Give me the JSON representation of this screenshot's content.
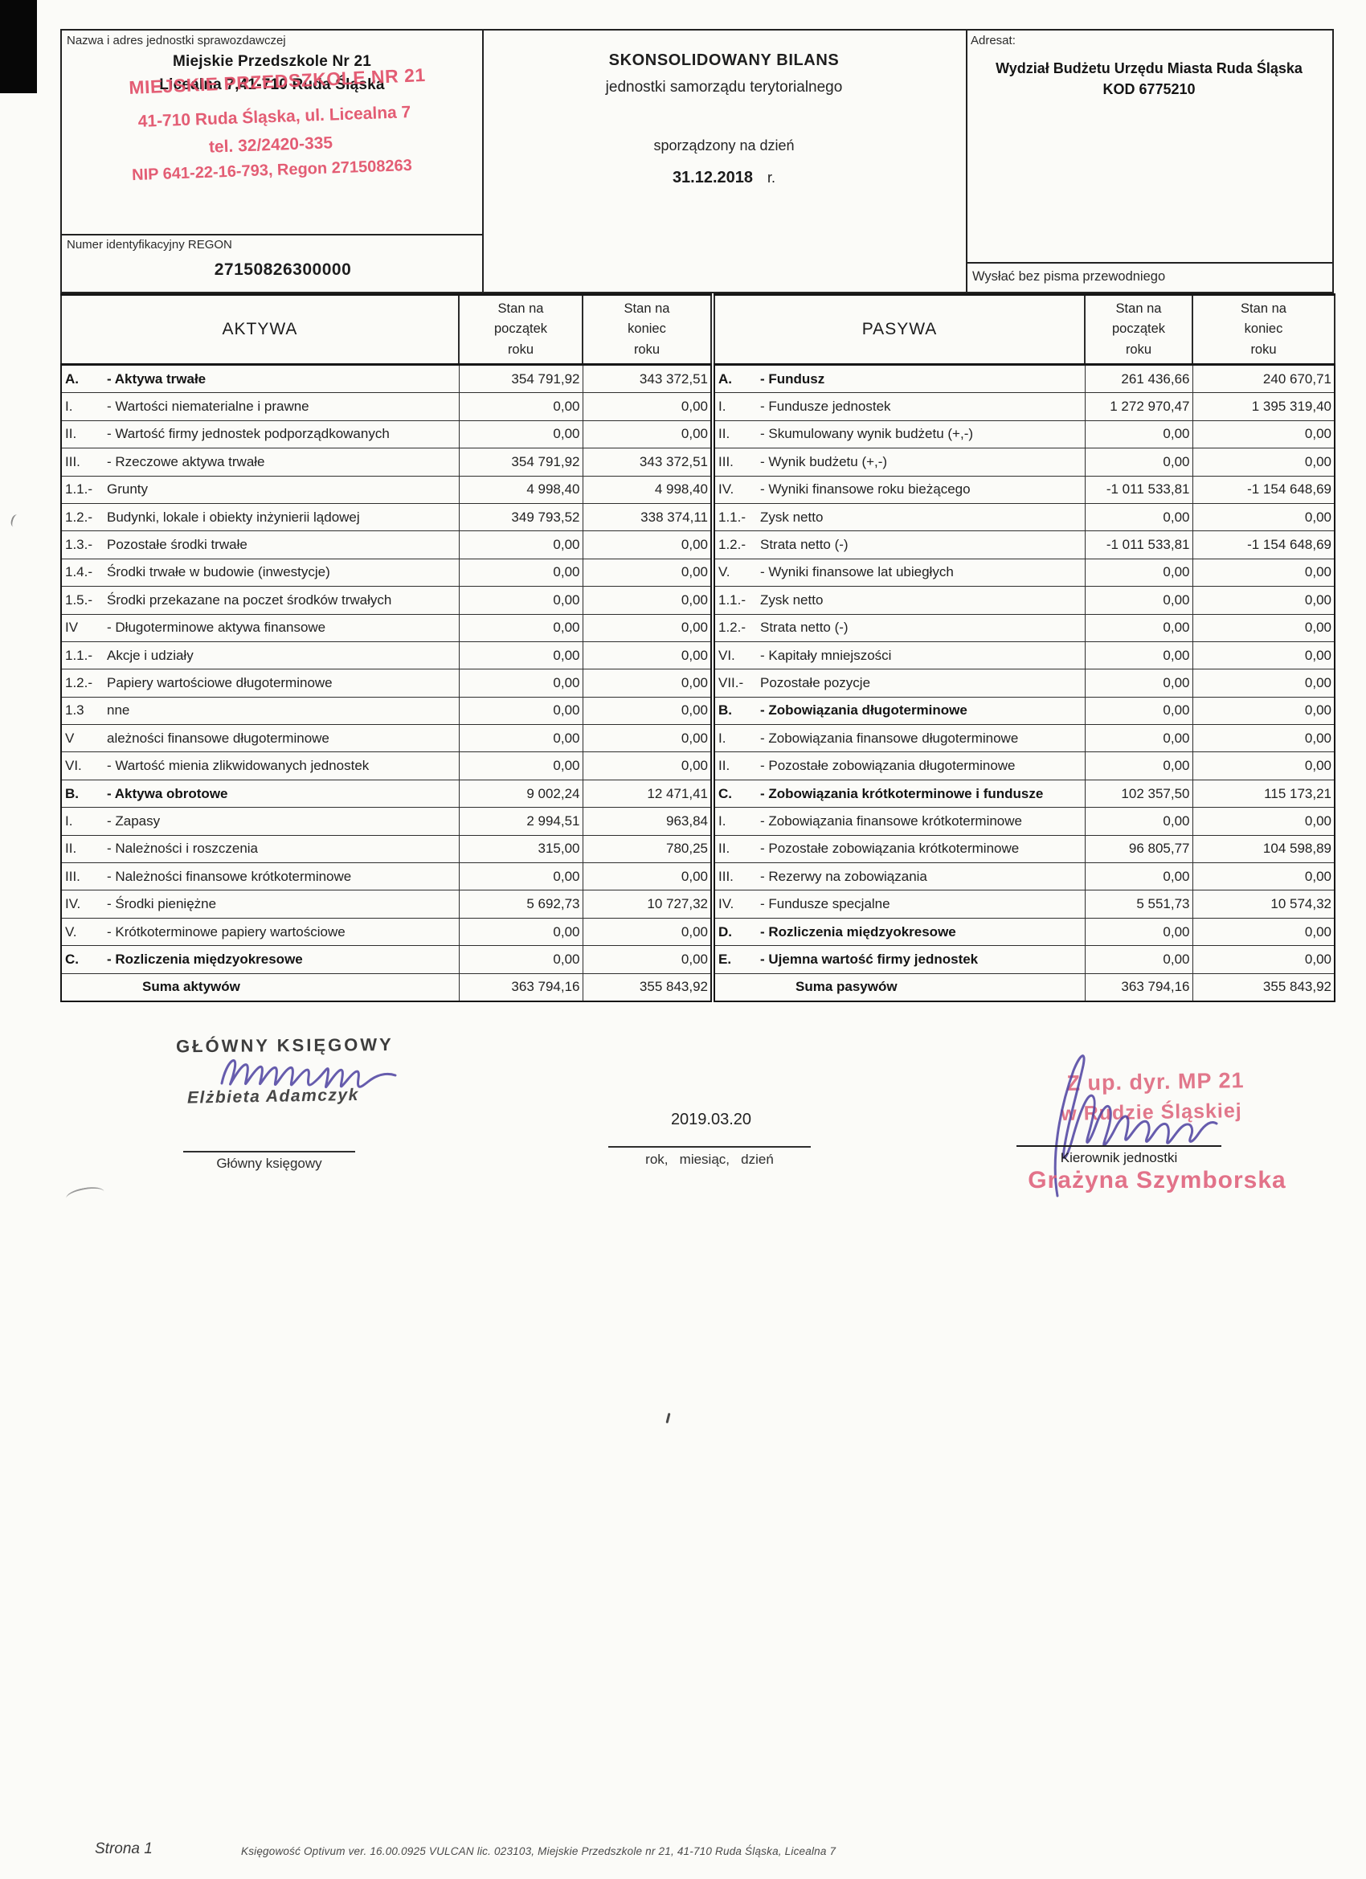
{
  "header": {
    "name_box": {
      "label": "Nazwa i adres jednostki sprawozdawczej",
      "typed_line1": "Miejskie Przedszkole Nr 21",
      "typed_line2": "Licealna 7,41-710 Ruda Śląska",
      "stamp": {
        "line1": "MIEJSKIE PRZEDSZKOLE NR 21",
        "line2": "41-710 Ruda Śląska, ul. Licealna 7",
        "line3": "tel. 32/2420-335",
        "line4": "NIP 641-22-16-793, Regon 271508263",
        "color": "#e25069"
      }
    },
    "title_box": {
      "title": "SKONSOLIDOWANY BILANS",
      "subtitle": "jednostki samorządu terytorialnego",
      "prepared_label": "sporządzony na dzień",
      "date": "31.12.2018",
      "date_suffix": "r."
    },
    "addressee_box": {
      "label": "Adresat:",
      "value": "Wydział Budżetu Urzędu Miasta Ruda Śląska KOD 6775210"
    },
    "regon_box": {
      "label": "Numer identyfikacyjny REGON",
      "value": "27150826300000"
    },
    "send_note": "Wysłać bez pisma przewodniego"
  },
  "table": {
    "aktywa_header": "AKTYWA",
    "pasywa_header": "PASYWA",
    "stan_header": "Stan na\npoczątek\nroku",
    "stan_header_end": "Stan na\nkoniec\nroku",
    "rows": [
      {
        "a": {
          "c": "A.",
          "t": "- Aktywa trwałe",
          "b": 1
        },
        "a1": "354 791,92",
        "a2": "343 372,51",
        "p": {
          "c": "A.",
          "t": "- Fundusz",
          "b": 1
        },
        "p1": "261 436,66",
        "p2": "240 670,71"
      },
      {
        "a": {
          "c": "I.",
          "t": "- Wartości niematerialne i prawne"
        },
        "a1": "0,00",
        "a2": "0,00",
        "p": {
          "c": "I.",
          "t": "- Fundusze jednostek"
        },
        "p1": "1 272 970,47",
        "p2": "1 395 319,40"
      },
      {
        "a": {
          "c": "II.",
          "t": "- Wartość firmy jednostek podporządkowanych"
        },
        "a1": "0,00",
        "a2": "0,00",
        "p": {
          "c": "II.",
          "t": "- Skumulowany wynik budżetu (+,-)"
        },
        "p1": "0,00",
        "p2": "0,00"
      },
      {
        "a": {
          "c": "III.",
          "t": "- Rzeczowe aktywa trwałe"
        },
        "a1": "354 791,92",
        "a2": "343 372,51",
        "p": {
          "c": "III.",
          "t": "- Wynik budżetu (+,-)"
        },
        "p1": "0,00",
        "p2": "0,00"
      },
      {
        "a": {
          "c": "1.1.-",
          "t": "Grunty"
        },
        "a1": "4 998,40",
        "a2": "4 998,40",
        "p": {
          "c": "IV.",
          "t": "- Wyniki finansowe roku bieżącego"
        },
        "p1": "-1 011 533,81",
        "p2": "-1 154 648,69"
      },
      {
        "a": {
          "c": "1.2.-",
          "t": "Budynki, lokale i obiekty inżynierii lądowej"
        },
        "a1": "349 793,52",
        "a2": "338 374,11",
        "p": {
          "c": "1.1.-",
          "t": "Zysk netto"
        },
        "p1": "0,00",
        "p2": "0,00"
      },
      {
        "a": {
          "c": "1.3.-",
          "t": "Pozostałe środki trwałe"
        },
        "a1": "0,00",
        "a2": "0,00",
        "p": {
          "c": "1.2.-",
          "t": "Strata netto (-)"
        },
        "p1": "-1 011 533,81",
        "p2": "-1 154 648,69"
      },
      {
        "a": {
          "c": "1.4.-",
          "t": "Środki trwałe w budowie (inwestycje)"
        },
        "a1": "0,00",
        "a2": "0,00",
        "p": {
          "c": "V.",
          "t": "- Wyniki finansowe lat ubiegłych"
        },
        "p1": "0,00",
        "p2": "0,00"
      },
      {
        "a": {
          "c": "1.5.-",
          "t": "Środki przekazane na poczet środków trwałych"
        },
        "a1": "0,00",
        "a2": "0,00",
        "p": {
          "c": "1.1.-",
          "t": "Zysk netto"
        },
        "p1": "0,00",
        "p2": "0,00"
      },
      {
        "a": {
          "c": "IV",
          "t": "- Długoterminowe aktywa finansowe"
        },
        "a1": "0,00",
        "a2": "0,00",
        "p": {
          "c": "1.2.-",
          "t": "Strata netto (-)"
        },
        "p1": "0,00",
        "p2": "0,00"
      },
      {
        "a": {
          "c": "1.1.-",
          "t": "Akcje i udziały"
        },
        "a1": "0,00",
        "a2": "0,00",
        "p": {
          "c": "VI.",
          "t": "- Kapitały mniejszości"
        },
        "p1": "0,00",
        "p2": "0,00"
      },
      {
        "a": {
          "c": "1.2.-",
          "t": "Papiery wartościowe długoterminowe"
        },
        "a1": "0,00",
        "a2": "0,00",
        "p": {
          "c": "VII.-",
          "t": "Pozostałe pozycje"
        },
        "p1": "0,00",
        "p2": "0,00"
      },
      {
        "a": {
          "c": "1.3",
          "t": "nne"
        },
        "a1": "0,00",
        "a2": "0,00",
        "p": {
          "c": "B.",
          "t": "- Zobowiązania długoterminowe",
          "b": 1
        },
        "p1": "0,00",
        "p2": "0,00"
      },
      {
        "a": {
          "c": "V",
          "t": "ależności finansowe długoterminowe"
        },
        "a1": "0,00",
        "a2": "0,00",
        "p": {
          "c": "I.",
          "t": "- Zobowiązania finansowe długoterminowe"
        },
        "p1": "0,00",
        "p2": "0,00"
      },
      {
        "a": {
          "c": "VI.",
          "t": "- Wartość mienia zlikwidowanych jednostek"
        },
        "a1": "0,00",
        "a2": "0,00",
        "p": {
          "c": "II.",
          "t": "- Pozostałe zobowiązania długoterminowe"
        },
        "p1": "0,00",
        "p2": "0,00"
      },
      {
        "a": {
          "c": "B.",
          "t": "- Aktywa obrotowe",
          "b": 1
        },
        "a1": "9 002,24",
        "a2": "12 471,41",
        "p": {
          "c": "C.",
          "t": "- Zobowiązania krótkoterminowe i fundusze",
          "b": 1
        },
        "p1": "102 357,50",
        "p2": "115 173,21"
      },
      {
        "a": {
          "c": "I.",
          "t": "- Zapasy"
        },
        "a1": "2 994,51",
        "a2": "963,84",
        "p": {
          "c": "I.",
          "t": "- Zobowiązania finansowe krótkoterminowe"
        },
        "p1": "0,00",
        "p2": "0,00"
      },
      {
        "a": {
          "c": "II.",
          "t": "- Należności i roszczenia"
        },
        "a1": "315,00",
        "a2": "780,25",
        "p": {
          "c": "II.",
          "t": "- Pozostałe zobowiązania krótkoterminowe"
        },
        "p1": "96 805,77",
        "p2": "104 598,89"
      },
      {
        "a": {
          "c": "III.",
          "t": "- Należności finansowe krótkoterminowe"
        },
        "a1": "0,00",
        "a2": "0,00",
        "p": {
          "c": "III.",
          "t": "- Rezerwy na zobowiązania"
        },
        "p1": "0,00",
        "p2": "0,00"
      },
      {
        "a": {
          "c": "IV.",
          "t": "- Środki pieniężne"
        },
        "a1": "5 692,73",
        "a2": "10 727,32",
        "p": {
          "c": "IV.",
          "t": "- Fundusze specjalne"
        },
        "p1": "5 551,73",
        "p2": "10 574,32"
      },
      {
        "a": {
          "c": "V.",
          "t": "- Krótkoterminowe papiery wartościowe"
        },
        "a1": "0,00",
        "a2": "0,00",
        "p": {
          "c": "D.",
          "t": "- Rozliczenia międzyokresowe",
          "b": 1
        },
        "p1": "0,00",
        "p2": "0,00"
      },
      {
        "a": {
          "c": "C.",
          "t": "- Rozliczenia międzyokresowe",
          "b": 1
        },
        "a1": "0,00",
        "a2": "0,00",
        "p": {
          "c": "E.",
          "t": "- Ujemna wartość firmy jednostek",
          "b": 1
        },
        "p1": "0,00",
        "p2": "0,00"
      },
      {
        "a": {
          "c": "",
          "t": "Suma aktywów",
          "b": 1,
          "s": 1
        },
        "a1": "363 794,16",
        "a2": "355 843,92",
        "p": {
          "c": "",
          "t": "Suma pasywów",
          "b": 1,
          "s": 1
        },
        "p1": "363 794,16",
        "p2": "355 843,92"
      }
    ]
  },
  "signatures": {
    "accountant": {
      "stamp_title": "GŁÓWNY KSIĘGOWY",
      "stamp_name": "Elżbieta Adamczyk",
      "role_label": "Główny księgowy",
      "ink_color": "#4b3fa0",
      "stamp_color": "#3d3d3d"
    },
    "date": {
      "value": "2019.03.20",
      "label": "rok,   miesiąc,   dzień"
    },
    "manager": {
      "stamp_line1": "Z up. dyr. MP 21",
      "stamp_line2": "w Rudzie Śląskiej",
      "role_label": "Kierownik jednostki",
      "name": "Grażyna Szymborska",
      "stamp_color": "#dd6079",
      "ink_color": "#4b3fa0"
    }
  },
  "footer": {
    "page": "Strona 1",
    "info": "Księgowość Optivum ver. 16.00.0925 VULCAN lic. 023103, Miejskie Przedszkole nr 21, 41-710 Ruda Śląska, Licealna 7"
  }
}
